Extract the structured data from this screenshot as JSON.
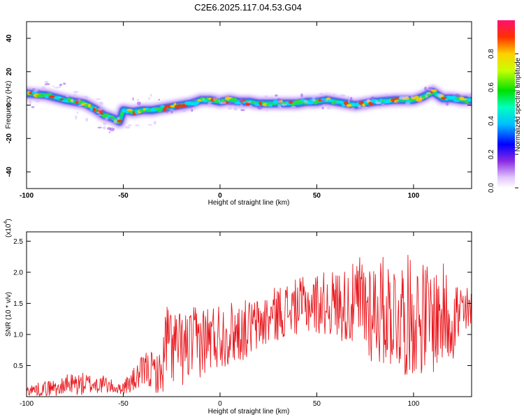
{
  "title": "C2E6.2025.117.04.53.G04",
  "chart_data": [
    {
      "type": "heatmap",
      "xlabel": "Height of straight line (km)",
      "ylabel": "Frequency (Hz)",
      "xlim": [
        -100,
        130
      ],
      "ylim": [
        -50,
        50
      ],
      "xticks": [
        -100,
        -50,
        0,
        50,
        100
      ],
      "yticks": [
        -40,
        -20,
        0,
        20,
        40
      ],
      "ridge": {
        "x": [
          -100,
          -90,
          -80,
          -70,
          -65,
          -60,
          -55,
          -52,
          -50,
          -45,
          -40,
          -35,
          -30,
          -25,
          -20,
          -15,
          -10,
          -5,
          0,
          5,
          10,
          15,
          20,
          30,
          40,
          45,
          50,
          55,
          60,
          65,
          70,
          75,
          80,
          90,
          100,
          105,
          108,
          110,
          115,
          120,
          125,
          130
        ],
        "y": [
          7,
          6,
          3,
          1,
          -2,
          -6,
          -8,
          -10,
          -3,
          -4,
          -3,
          -3,
          -2,
          -1,
          0,
          1,
          3,
          3,
          2,
          3,
          2,
          2,
          1,
          1,
          1,
          2,
          2,
          3,
          2,
          1,
          0,
          1,
          2,
          3,
          3,
          5,
          7,
          8,
          4,
          4,
          3,
          3
        ]
      },
      "colorbar": {
        "label": "Normalized spectral amplitude",
        "ticks": [
          "0.0",
          "0.2",
          "0.4",
          "0.6",
          "0.8"
        ],
        "range": [
          0,
          1
        ]
      },
      "grid": false
    },
    {
      "type": "line",
      "xlabel": "Height of straight line (km)",
      "ylabel": "SNR (10 * v/v)",
      "yscale_label": "(x10",
      "yscale_exp": "4",
      "yscale_close": ")",
      "xlim": [
        -100,
        130
      ],
      "ylim": [
        0,
        2.65
      ],
      "xticks": [
        -100,
        -50,
        0,
        50,
        100
      ],
      "yticks": [
        "0.5",
        "1.0",
        "1.5",
        "2.0",
        "2.5"
      ],
      "color": "#e8181e",
      "envelope": {
        "x": [
          -100,
          -85,
          -75,
          -60,
          -52,
          -45,
          -38,
          -30,
          -28,
          -20,
          -10,
          0,
          10,
          20,
          30,
          40,
          50,
          60,
          70,
          73,
          80,
          90,
          96,
          100,
          110,
          115,
          120,
          125,
          130
        ],
        "mean": [
          0.1,
          0.15,
          0.2,
          0.2,
          0.12,
          0.25,
          0.45,
          0.35,
          0.9,
          0.75,
          0.9,
          1.0,
          1.05,
          1.15,
          1.35,
          1.45,
          1.5,
          1.5,
          1.45,
          1.5,
          1.4,
          1.35,
          1.3,
          1.3,
          1.25,
          1.3,
          1.3,
          1.3,
          1.3
        ],
        "amp": [
          0.08,
          0.15,
          0.2,
          0.15,
          0.08,
          0.2,
          0.3,
          0.35,
          0.7,
          0.6,
          0.6,
          0.55,
          0.5,
          0.45,
          0.45,
          0.45,
          0.5,
          0.55,
          0.7,
          0.9,
          0.9,
          0.9,
          1.0,
          0.95,
          0.9,
          0.85,
          0.75,
          0.6,
          0.4
        ]
      },
      "grid": false
    }
  ]
}
